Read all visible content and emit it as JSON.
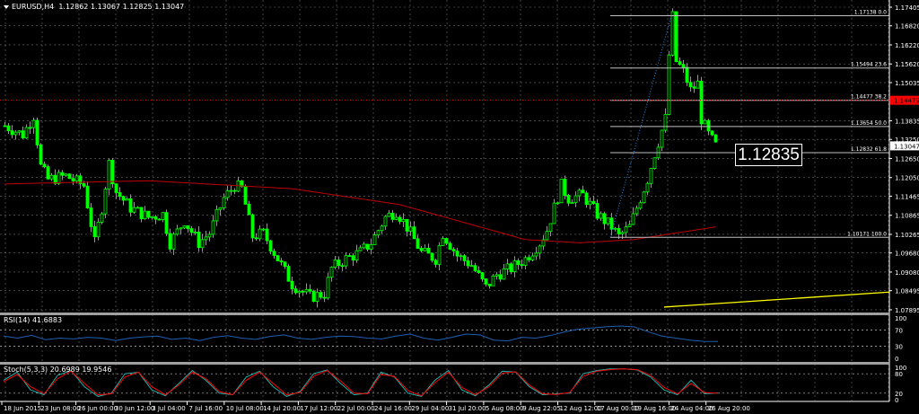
{
  "header": {
    "symbol": "EURUSD,H4",
    "ohlc": "1.12862 1.13067 1.12825 1.13047"
  },
  "crosshair_price_label": "1.12835",
  "colors": {
    "background": "#000000",
    "candles": "#00ff00",
    "moving_average": "#c00000",
    "trendline": "#ffff00",
    "fibo": "#c0c0c0",
    "fibo_baseline": "#1e90ff",
    "rsi": "#1e5fb4",
    "stoch_main": "#20b2aa",
    "stoch_signal": "#ff0000",
    "bid_label": "#ff0000",
    "grid": "#c0c0c0"
  },
  "chart_data": {
    "type": "candlestick",
    "price_axis": {
      "ticks": [
        "1.17405",
        "1.16820",
        "1.16220",
        "1.15620",
        "1.15035",
        "1.13835",
        "1.13250",
        "1.12650",
        "1.12050",
        "1.11465",
        "1.10865",
        "1.10265",
        "1.09680",
        "1.09080",
        "1.08495",
        "1.07895"
      ],
      "range": [
        1.079,
        1.1741
      ],
      "current_price": "1.13047",
      "marked_price": "1.14479"
    },
    "time_axis": {
      "ticks": [
        "18 Jun 2015",
        "23 Jun 08:00",
        "26 Jun 00:00",
        "30 Jun 12:00",
        "3 Jul 04:00",
        "7 Jul 16:00",
        "10 Jul 08:00",
        "14 Jul 20:00",
        "17 Jul 12:00",
        "22 Jul 00:00",
        "24 Jul 16:00",
        "29 Jul 04:00",
        "31 Jul 20:00",
        "5 Aug 08:00",
        "9 Aug 22:05",
        "12 Aug 12:00",
        "17 Aug 00:00",
        "19 Aug 16:00",
        "24 Aug 04:00",
        "26 Aug 20:00"
      ]
    },
    "close_path_bar_price": [
      [
        0,
        1.1368
      ],
      [
        5,
        1.134
      ],
      [
        8,
        1.14
      ],
      [
        10,
        1.124
      ],
      [
        12,
        1.1199
      ],
      [
        17,
        1.121
      ],
      [
        22,
        1.118
      ],
      [
        25,
        1.1
      ],
      [
        27,
        1.111
      ],
      [
        29,
        1.125
      ],
      [
        31,
        1.116
      ],
      [
        35,
        1.111
      ],
      [
        40,
        1.108
      ],
      [
        44,
        1.109
      ],
      [
        46,
        1.1
      ],
      [
        50,
        1.107
      ],
      [
        54,
        1.1
      ],
      [
        57,
        1.103
      ],
      [
        61,
        1.114
      ],
      [
        64,
        1.118
      ],
      [
        66,
        1.117
      ],
      [
        69,
        1.102
      ],
      [
        72,
        1.103
      ],
      [
        76,
        1.095
      ],
      [
        80,
        1.087
      ],
      [
        85,
        1.083
      ],
      [
        89,
        1.084
      ],
      [
        91,
        1.092
      ],
      [
        95,
        1.095
      ],
      [
        99,
        1.097
      ],
      [
        102,
        1.1
      ],
      [
        106,
        1.108
      ],
      [
        109,
        1.11
      ],
      [
        112,
        1.105
      ],
      [
        116,
        1.097
      ],
      [
        120,
        1.095
      ],
      [
        122,
        1.103
      ],
      [
        126,
        1.096
      ],
      [
        130,
        1.093
      ],
      [
        134,
        1.086
      ],
      [
        137,
        1.09
      ],
      [
        141,
        1.092
      ],
      [
        145,
        1.095
      ],
      [
        149,
        1.1
      ],
      [
        151,
        1.104
      ],
      [
        155,
        1.118
      ],
      [
        157,
        1.114
      ],
      [
        161,
        1.115
      ],
      [
        165,
        1.109
      ],
      [
        169,
        1.105
      ],
      [
        171,
        1.102
      ],
      [
        174,
        1.105
      ],
      [
        176,
        1.111
      ],
      [
        179,
        1.12
      ],
      [
        181,
        1.128
      ],
      [
        184,
        1.139
      ],
      [
        185,
        1.159
      ],
      [
        186,
        1.171
      ],
      [
        187,
        1.157
      ],
      [
        189,
        1.154
      ],
      [
        191,
        1.148
      ],
      [
        193,
        1.15
      ],
      [
        194,
        1.139
      ],
      [
        196,
        1.134
      ],
      [
        198,
        1.1305
      ]
    ],
    "moving_average_bar_price": [
      [
        0,
        1.1185
      ],
      [
        40,
        1.1195
      ],
      [
        80,
        1.117
      ],
      [
        110,
        1.112
      ],
      [
        145,
        1.101
      ],
      [
        160,
        1.1
      ],
      [
        175,
        1.101
      ],
      [
        198,
        1.105
      ]
    ],
    "trendline_bar_price": [
      [
        184,
        1.0798
      ],
      [
        248,
        1.0845
      ]
    ],
    "fibonacci": {
      "from": [
        169,
        1.10171
      ],
      "to": [
        186,
        1.17138
      ],
      "levels": [
        {
          "price": "1.17138",
          "ratio": "0.0"
        },
        {
          "price": "1.15494",
          "ratio": "23.6"
        },
        {
          "price": "1.14477",
          "ratio": "38.2"
        },
        {
          "price": "1.13654",
          "ratio": "50.0"
        },
        {
          "price": "1.12832",
          "ratio": "61.8"
        },
        {
          "price": "1.10171",
          "ratio": "100.0"
        }
      ]
    },
    "indicators": [
      {
        "label": "RSI(14) 41.6883",
        "levels": [
          "100",
          "70",
          "30",
          "0"
        ],
        "range": [
          0,
          100
        ],
        "values": [
          55,
          50,
          57,
          46,
          50,
          48,
          52,
          50,
          44,
          50,
          53,
          55,
          47,
          50,
          44,
          52,
          56,
          50,
          47,
          54,
          58,
          50,
          47,
          52,
          55,
          54,
          50,
          48,
          55,
          60,
          50,
          45,
          52,
          60,
          58,
          45,
          43,
          52,
          50,
          56,
          65,
          72,
          75,
          78,
          80,
          78,
          66,
          55,
          50,
          45,
          42,
          41.7
        ]
      },
      {
        "label": "Stoch(5,3,3) 20.6989 19.9546",
        "levels": [
          "100",
          "80",
          "20",
          "0"
        ],
        "range": [
          0,
          100
        ],
        "main": [
          60,
          85,
          30,
          15,
          75,
          90,
          40,
          10,
          20,
          80,
          85,
          30,
          12,
          50,
          90,
          60,
          20,
          15,
          70,
          88,
          40,
          10,
          25,
          80,
          92,
          50,
          15,
          20,
          85,
          70,
          20,
          10,
          60,
          90,
          30,
          12,
          45,
          88,
          85,
          40,
          15,
          18,
          20,
          80,
          90,
          95,
          95,
          92,
          70,
          30,
          15,
          60,
          18,
          20.7
        ],
        "signal": [
          55,
          78,
          40,
          18,
          65,
          88,
          50,
          15,
          18,
          70,
          85,
          40,
          15,
          45,
          85,
          65,
          25,
          15,
          60,
          85,
          50,
          15,
          22,
          72,
          90,
          58,
          20,
          18,
          78,
          72,
          28,
          12,
          52,
          85,
          38,
          15,
          40,
          82,
          86,
          45,
          18,
          16,
          22,
          72,
          88,
          93,
          95,
          93,
          75,
          38,
          18,
          50,
          22,
          19.95
        ]
      }
    ]
  }
}
